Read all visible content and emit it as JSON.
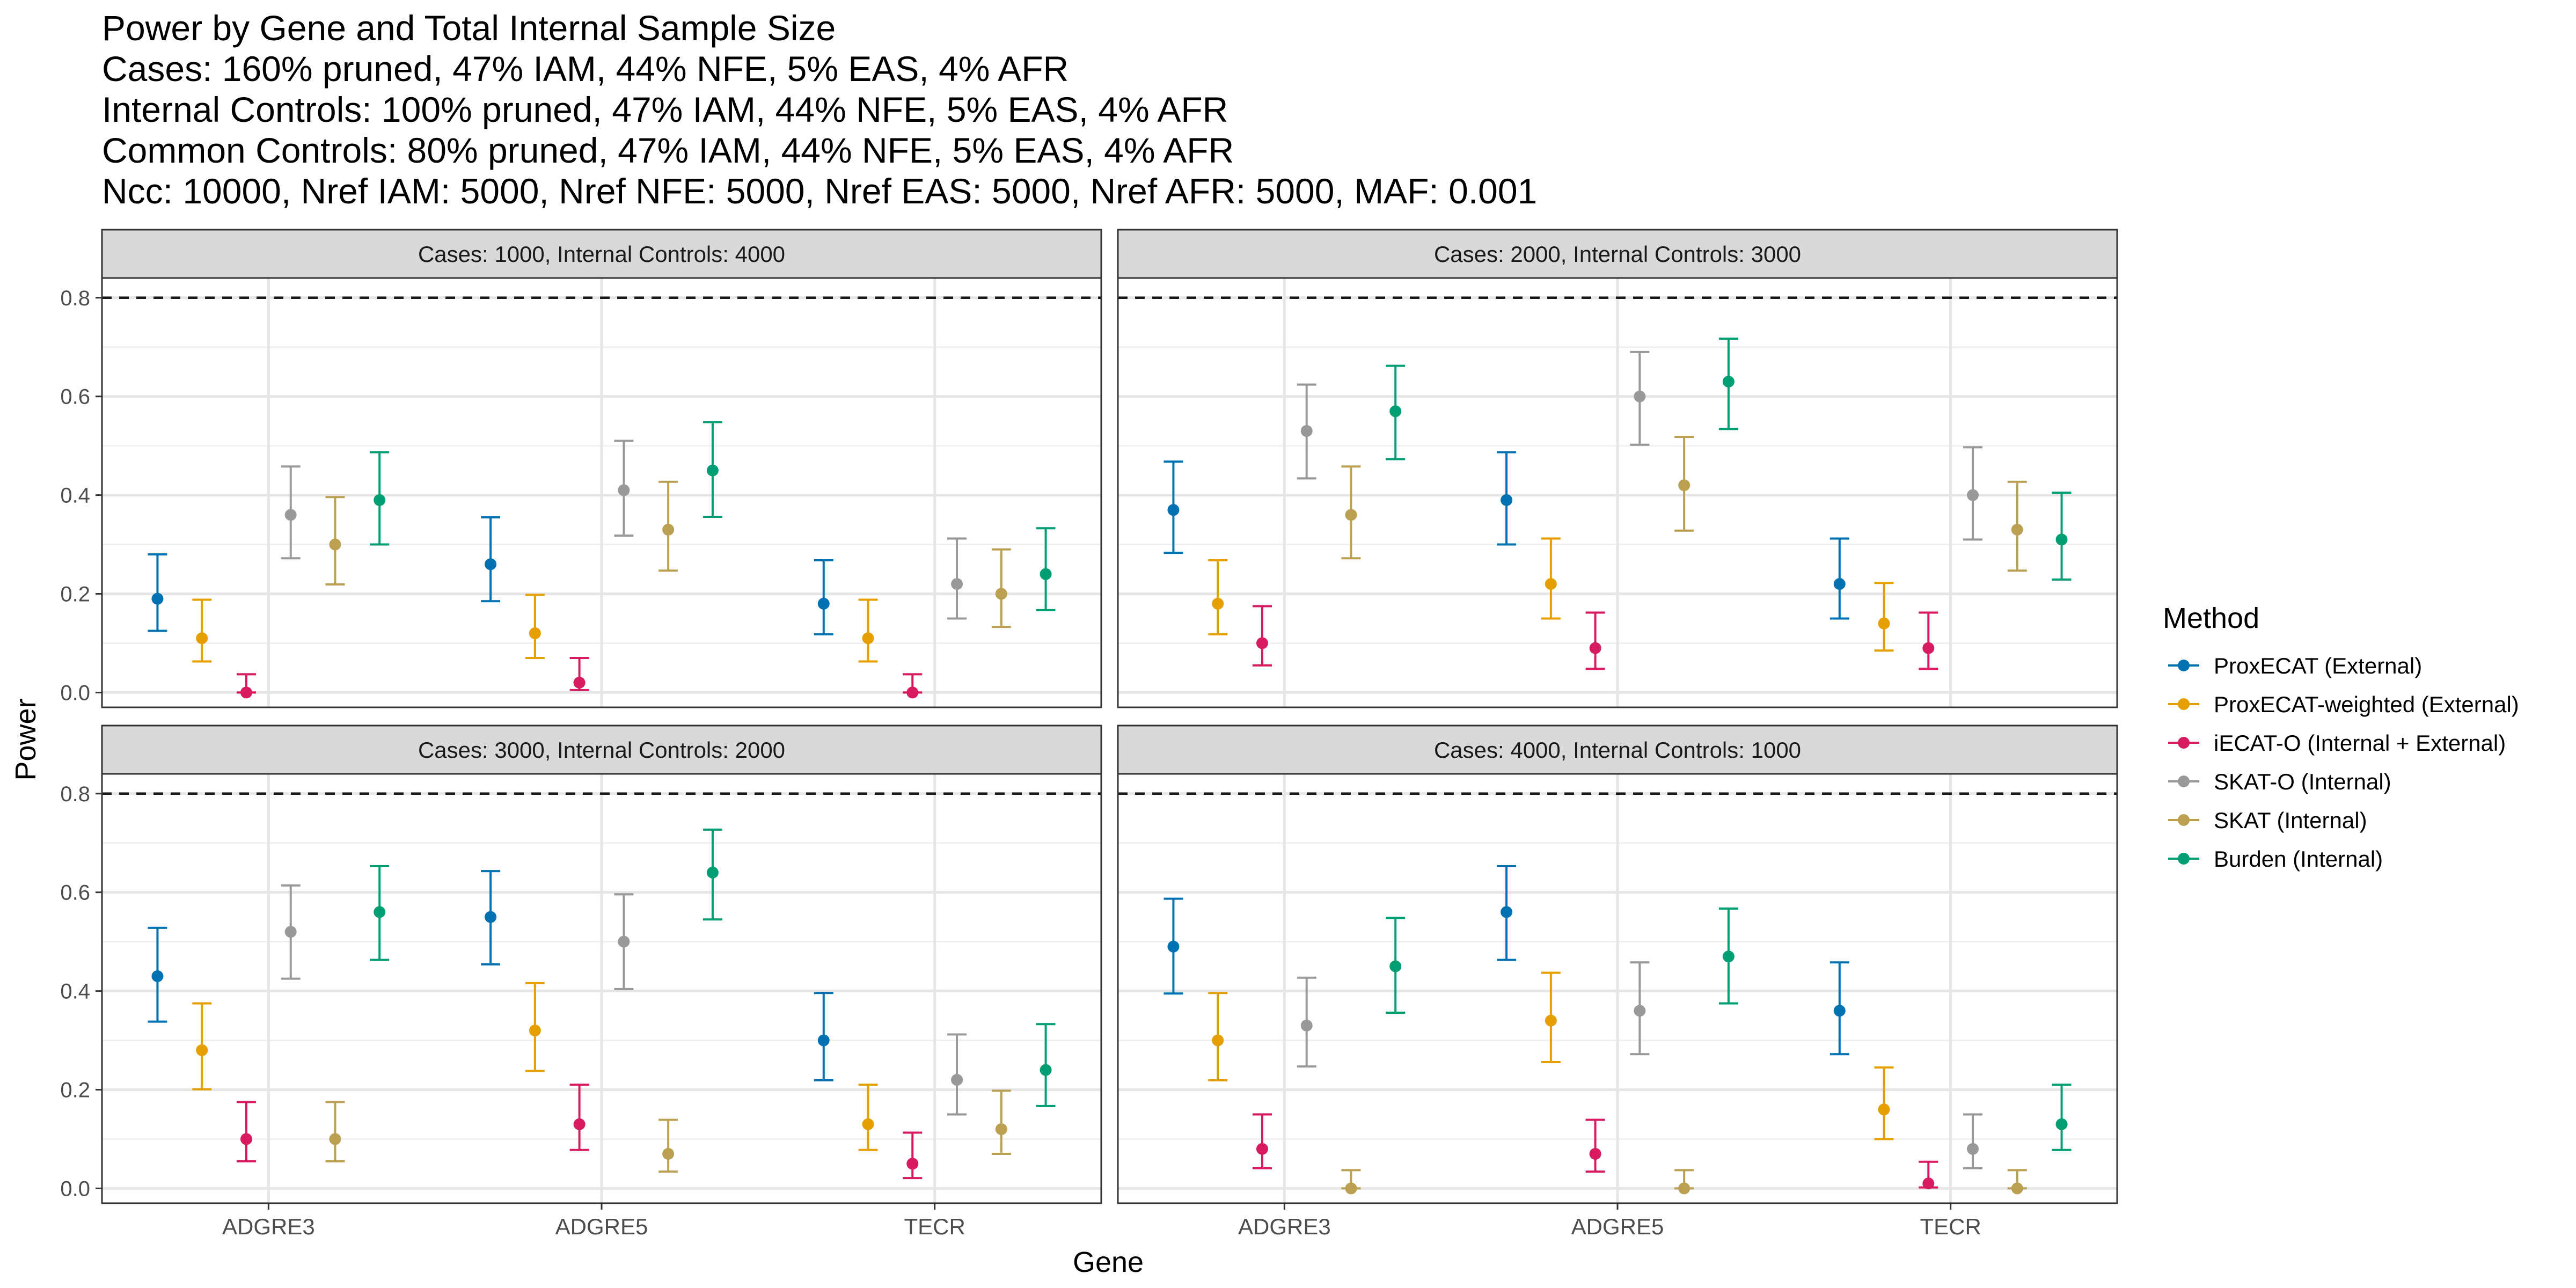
{
  "title": {
    "lines": [
      "Power by Gene and Total Internal Sample Size",
      "Cases: 160% pruned, 47% IAM, 44% NFE, 5% EAS, 4% AFR",
      "Internal Controls: 100% pruned, 47% IAM, 44% NFE, 5% EAS, 4% AFR",
      "Common Controls: 80% pruned, 47% IAM, 44% NFE, 5% EAS, 4% AFR",
      "Ncc: 10000, Nref IAM: 5000, Nref NFE: 5000, Nref EAS: 5000, Nref AFR: 5000, MAF: 0.001"
    ]
  },
  "chart_data": {
    "type": "scatter",
    "subtype": "point-with-errorbars, faceted 2x2",
    "xlabel": "Gene",
    "ylabel": "Power",
    "categories": [
      "ADGRE3",
      "ADGRE5",
      "TECR"
    ],
    "ylim": [
      -0.03,
      0.84
    ],
    "yticks": [
      "0.0",
      "0.2",
      "0.4",
      "0.6",
      "0.8"
    ],
    "reference_line": {
      "y": 0.8,
      "style": "dashed"
    },
    "grid": true,
    "legend": {
      "title": "Method",
      "position": "right",
      "entries": [
        {
          "name": "ProxECAT (External)",
          "color": "#0072B2"
        },
        {
          "name": "ProxECAT-weighted (External)",
          "color": "#E69F00"
        },
        {
          "name": "iECAT-O (Internal + External)",
          "color": "#D81B60"
        },
        {
          "name": "SKAT-O (Internal)",
          "color": "#999999"
        },
        {
          "name": "SKAT (Internal)",
          "color": "#BBA052"
        },
        {
          "name": "Burden (Internal)",
          "color": "#009E73"
        }
      ]
    },
    "facets": [
      {
        "label": "Cases: 1000, Internal Controls: 4000",
        "series": [
          {
            "values": [
              {
                "y": 0.19,
                "lo": 0.125,
                "hi": 0.28
              },
              {
                "y": 0.26,
                "lo": 0.185,
                "hi": 0.355
              },
              {
                "y": 0.18,
                "lo": 0.118,
                "hi": 0.268
              }
            ]
          },
          {
            "values": [
              {
                "y": 0.11,
                "lo": 0.063,
                "hi": 0.188
              },
              {
                "y": 0.12,
                "lo": 0.07,
                "hi": 0.198
              },
              {
                "y": 0.11,
                "lo": 0.063,
                "hi": 0.188
              }
            ]
          },
          {
            "values": [
              {
                "y": 0.0,
                "lo": 0.0,
                "hi": 0.037
              },
              {
                "y": 0.02,
                "lo": 0.005,
                "hi": 0.07
              },
              {
                "y": 0.0,
                "lo": 0.0,
                "hi": 0.037
              }
            ]
          },
          {
            "values": [
              {
                "y": 0.36,
                "lo": 0.272,
                "hi": 0.458
              },
              {
                "y": 0.41,
                "lo": 0.318,
                "hi": 0.51
              },
              {
                "y": 0.22,
                "lo": 0.15,
                "hi": 0.312
              }
            ]
          },
          {
            "values": [
              {
                "y": 0.3,
                "lo": 0.219,
                "hi": 0.396
              },
              {
                "y": 0.33,
                "lo": 0.247,
                "hi": 0.427
              },
              {
                "y": 0.2,
                "lo": 0.133,
                "hi": 0.29
              }
            ]
          },
          {
            "values": [
              {
                "y": 0.39,
                "lo": 0.3,
                "hi": 0.487
              },
              {
                "y": 0.45,
                "lo": 0.356,
                "hi": 0.548
              },
              {
                "y": 0.24,
                "lo": 0.167,
                "hi": 0.333
              }
            ]
          }
        ]
      },
      {
        "label": "Cases: 2000, Internal Controls: 3000",
        "series": [
          {
            "values": [
              {
                "y": 0.37,
                "lo": 0.283,
                "hi": 0.468
              },
              {
                "y": 0.39,
                "lo": 0.3,
                "hi": 0.487
              },
              {
                "y": 0.22,
                "lo": 0.15,
                "hi": 0.312
              }
            ]
          },
          {
            "values": [
              {
                "y": 0.18,
                "lo": 0.118,
                "hi": 0.268
              },
              {
                "y": 0.22,
                "lo": 0.15,
                "hi": 0.312
              },
              {
                "y": 0.14,
                "lo": 0.085,
                "hi": 0.222
              }
            ]
          },
          {
            "values": [
              {
                "y": 0.1,
                "lo": 0.055,
                "hi": 0.175
              },
              {
                "y": 0.09,
                "lo": 0.048,
                "hi": 0.162
              },
              {
                "y": 0.09,
                "lo": 0.048,
                "hi": 0.162
              }
            ]
          },
          {
            "values": [
              {
                "y": 0.53,
                "lo": 0.434,
                "hi": 0.624
              },
              {
                "y": 0.6,
                "lo": 0.502,
                "hi": 0.69
              },
              {
                "y": 0.4,
                "lo": 0.31,
                "hi": 0.497
              }
            ]
          },
          {
            "values": [
              {
                "y": 0.36,
                "lo": 0.272,
                "hi": 0.458
              },
              {
                "y": 0.42,
                "lo": 0.328,
                "hi": 0.518
              },
              {
                "y": 0.33,
                "lo": 0.247,
                "hi": 0.427
              }
            ]
          },
          {
            "values": [
              {
                "y": 0.57,
                "lo": 0.473,
                "hi": 0.662
              },
              {
                "y": 0.63,
                "lo": 0.534,
                "hi": 0.717
              },
              {
                "y": 0.31,
                "lo": 0.229,
                "hi": 0.405
              }
            ]
          }
        ]
      },
      {
        "label": "Cases: 3000, Internal Controls: 2000",
        "series": [
          {
            "values": [
              {
                "y": 0.43,
                "lo": 0.338,
                "hi": 0.528
              },
              {
                "y": 0.55,
                "lo": 0.454,
                "hi": 0.643
              },
              {
                "y": 0.3,
                "lo": 0.219,
                "hi": 0.396
              }
            ]
          },
          {
            "values": [
              {
                "y": 0.28,
                "lo": 0.201,
                "hi": 0.375
              },
              {
                "y": 0.32,
                "lo": 0.238,
                "hi": 0.416
              },
              {
                "y": 0.13,
                "lo": 0.078,
                "hi": 0.21
              }
            ]
          },
          {
            "values": [
              {
                "y": 0.1,
                "lo": 0.055,
                "hi": 0.175
              },
              {
                "y": 0.13,
                "lo": 0.078,
                "hi": 0.21
              },
              {
                "y": 0.05,
                "lo": 0.021,
                "hi": 0.113
              }
            ]
          },
          {
            "values": [
              {
                "y": 0.52,
                "lo": 0.425,
                "hi": 0.614
              },
              {
                "y": 0.5,
                "lo": 0.404,
                "hi": 0.596
              },
              {
                "y": 0.22,
                "lo": 0.15,
                "hi": 0.312
              }
            ]
          },
          {
            "values": [
              {
                "y": 0.1,
                "lo": 0.055,
                "hi": 0.175
              },
              {
                "y": 0.07,
                "lo": 0.034,
                "hi": 0.139
              },
              {
                "y": 0.12,
                "lo": 0.07,
                "hi": 0.198
              }
            ]
          },
          {
            "values": [
              {
                "y": 0.56,
                "lo": 0.463,
                "hi": 0.653
              },
              {
                "y": 0.64,
                "lo": 0.545,
                "hi": 0.727
              },
              {
                "y": 0.24,
                "lo": 0.167,
                "hi": 0.333
              }
            ]
          }
        ]
      },
      {
        "label": "Cases: 4000, Internal Controls: 1000",
        "series": [
          {
            "values": [
              {
                "y": 0.49,
                "lo": 0.395,
                "hi": 0.587
              },
              {
                "y": 0.56,
                "lo": 0.463,
                "hi": 0.653
              },
              {
                "y": 0.36,
                "lo": 0.272,
                "hi": 0.458
              }
            ]
          },
          {
            "values": [
              {
                "y": 0.3,
                "lo": 0.219,
                "hi": 0.396
              },
              {
                "y": 0.34,
                "lo": 0.256,
                "hi": 0.437
              },
              {
                "y": 0.16,
                "lo": 0.1,
                "hi": 0.245
              }
            ]
          },
          {
            "values": [
              {
                "y": 0.08,
                "lo": 0.041,
                "hi": 0.15
              },
              {
                "y": 0.07,
                "lo": 0.034,
                "hi": 0.139
              },
              {
                "y": 0.01,
                "lo": 0.002,
                "hi": 0.054
              }
            ]
          },
          {
            "values": [
              {
                "y": 0.33,
                "lo": 0.247,
                "hi": 0.427
              },
              {
                "y": 0.36,
                "lo": 0.272,
                "hi": 0.458
              },
              {
                "y": 0.08,
                "lo": 0.041,
                "hi": 0.15
              }
            ]
          },
          {
            "values": [
              {
                "y": 0.0,
                "lo": 0.0,
                "hi": 0.037
              },
              {
                "y": 0.0,
                "lo": 0.0,
                "hi": 0.037
              },
              {
                "y": 0.0,
                "lo": 0.0,
                "hi": 0.037
              }
            ]
          },
          {
            "values": [
              {
                "y": 0.45,
                "lo": 0.356,
                "hi": 0.548
              },
              {
                "y": 0.47,
                "lo": 0.375,
                "hi": 0.567
              },
              {
                "y": 0.13,
                "lo": 0.078,
                "hi": 0.21
              }
            ]
          }
        ]
      }
    ]
  }
}
